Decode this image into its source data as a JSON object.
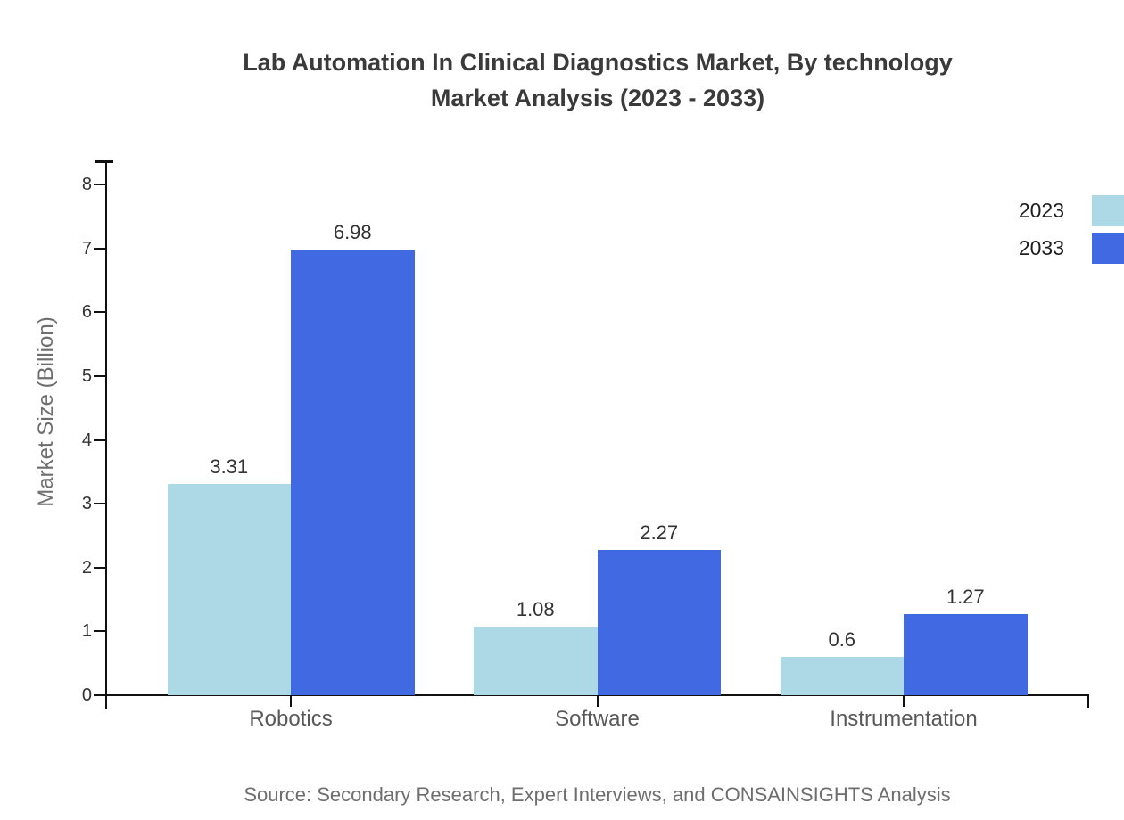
{
  "title": {
    "lines": [
      "Lab Automation In Clinical Diagnostics Market, By technology",
      "Market Analysis (2023 - 2033)"
    ]
  },
  "legend": [
    {
      "label": "2023",
      "color": "#add8e6"
    },
    {
      "label": "2033",
      "color": "#4169e1"
    }
  ],
  "source": "Source: Secondary Research, Expert Interviews, and CONSAINSIGHTS Analysis",
  "chart_data": {
    "type": "bar",
    "title": "Lab Automation In Clinical Diagnostics Market, By technology Market Analysis (2023 - 2033)",
    "categories": [
      "Robotics",
      "Software",
      "Instrumentation"
    ],
    "series": [
      {
        "name": "2023",
        "color": "#add8e6",
        "values": [
          3.31,
          1.08,
          0.6
        ]
      },
      {
        "name": "2033",
        "color": "#4169e1",
        "values": [
          6.98,
          2.27,
          1.27
        ]
      }
    ],
    "value_labels": [
      "3.31",
      "6.98",
      "1.08",
      "2.27",
      "0.6",
      "1.27"
    ],
    "xlabel": "",
    "ylabel": "Market Size (Billion)",
    "ylim": [
      0,
      8
    ],
    "yticks": [
      0,
      1,
      2,
      3,
      4,
      5,
      6,
      7,
      8
    ],
    "grid": false,
    "legend_position": "top-right",
    "bar_value_labels_shown": true
  }
}
